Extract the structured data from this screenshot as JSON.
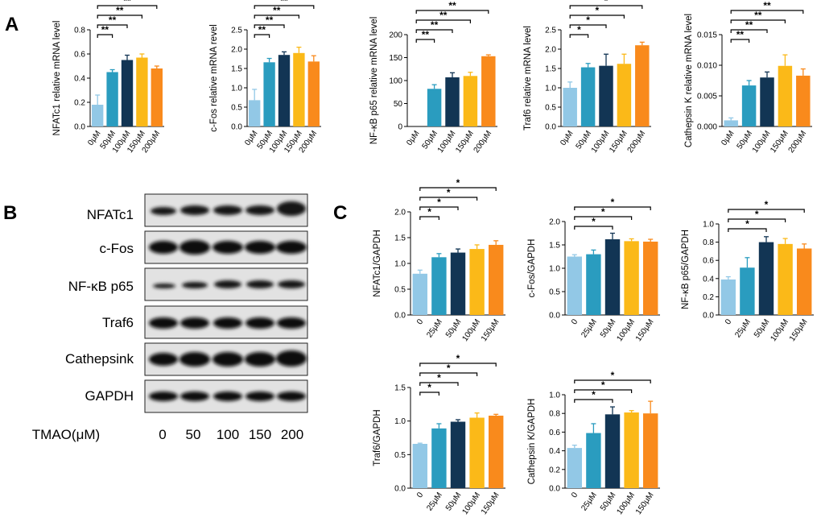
{
  "figure": {
    "panels": {
      "a": "A",
      "b": "B",
      "c": "C"
    }
  },
  "colors": [
    "#92c8e6",
    "#2a9cbf",
    "#123554",
    "#fbb918",
    "#f98a1c"
  ],
  "chart_data": [
    {
      "type": "bar",
      "panel": "A",
      "categories": [
        "0μM",
        "50μM",
        "100μM",
        "150μM",
        "200μM"
      ],
      "values": [
        0.18,
        0.45,
        0.55,
        0.57,
        0.48
      ],
      "errors": [
        0.08,
        0.02,
        0.04,
        0.03,
        0.02
      ],
      "ylabel": "NFATc1 relative mRNA level",
      "ylim": [
        0,
        0.8
      ],
      "yticks": [
        "0.0",
        "0.2",
        "0.4",
        "0.6",
        "0.8"
      ],
      "significance": [
        {
          "from": 0,
          "to": 1,
          "label": "**"
        },
        {
          "from": 0,
          "to": 2,
          "label": "**"
        },
        {
          "from": 0,
          "to": 3,
          "label": "**"
        },
        {
          "from": 0,
          "to": 4,
          "label": "**"
        }
      ]
    },
    {
      "type": "bar",
      "panel": "A",
      "categories": [
        "0μM",
        "50μM",
        "100μM",
        "150μM",
        "200μM"
      ],
      "values": [
        0.68,
        1.66,
        1.85,
        1.9,
        1.68
      ],
      "errors": [
        0.28,
        0.1,
        0.08,
        0.15,
        0.15
      ],
      "ylabel": "c-Fos relative mRNA revel",
      "ylim": [
        0,
        2.5
      ],
      "yticks": [
        "0.0",
        "0.5",
        "1.0",
        "1.5",
        "2.0",
        "2.5"
      ],
      "significance": [
        {
          "from": 0,
          "to": 1,
          "label": "**"
        },
        {
          "from": 0,
          "to": 2,
          "label": "**"
        },
        {
          "from": 0,
          "to": 3,
          "label": "**"
        },
        {
          "from": 0,
          "to": 4,
          "label": "**"
        }
      ]
    },
    {
      "type": "bar",
      "panel": "A",
      "categories": [
        "0μM",
        "50μM",
        "100μM",
        "150μM",
        "200μM"
      ],
      "values": [
        0,
        82,
        107,
        110,
        153
      ],
      "errors": [
        0,
        9,
        10,
        8,
        3
      ],
      "ylabel": "NF-κB p65 relative mRNA level",
      "ylim": [
        0,
        200
      ],
      "yticks": [
        "0",
        "50",
        "100",
        "150",
        "200"
      ],
      "significance": [
        {
          "from": 0,
          "to": 1,
          "label": "**"
        },
        {
          "from": 0,
          "to": 2,
          "label": "**"
        },
        {
          "from": 0,
          "to": 3,
          "label": "**"
        },
        {
          "from": 0,
          "to": 4,
          "label": "**"
        }
      ]
    },
    {
      "type": "bar",
      "panel": "A",
      "categories": [
        "0μM",
        "50μM",
        "100μM",
        "150μM",
        "200μM"
      ],
      "values": [
        1.0,
        1.53,
        1.57,
        1.62,
        2.1
      ],
      "errors": [
        0.15,
        0.1,
        0.3,
        0.25,
        0.08
      ],
      "ylabel": "Traf6 relative mRNA level",
      "ylim": [
        0,
        2.5
      ],
      "yticks": [
        "0.0",
        "0.5",
        "1.0",
        "1.5",
        "2.0",
        "2.5"
      ],
      "significance": [
        {
          "from": 0,
          "to": 1,
          "label": "*"
        },
        {
          "from": 0,
          "to": 2,
          "label": "*"
        },
        {
          "from": 0,
          "to": 3,
          "label": "*"
        },
        {
          "from": 0,
          "to": 4,
          "label": "*"
        }
      ]
    },
    {
      "type": "bar",
      "panel": "A",
      "categories": [
        "0μM",
        "50μM",
        "100μM",
        "150μM",
        "200μM"
      ],
      "values": [
        0.001,
        0.0067,
        0.008,
        0.0099,
        0.0083
      ],
      "errors": [
        0.0004,
        0.0008,
        0.0009,
        0.0018,
        0.0011
      ],
      "ylabel": "Cathepsin K relative mRNA level",
      "ylim": [
        0,
        0.015
      ],
      "yticks": [
        "0.000",
        "0.005",
        "0.010",
        "0.015"
      ],
      "significance": [
        {
          "from": 0,
          "to": 1,
          "label": "**"
        },
        {
          "from": 0,
          "to": 2,
          "label": "**"
        },
        {
          "from": 0,
          "to": 3,
          "label": "**"
        },
        {
          "from": 0,
          "to": 4,
          "label": "**"
        }
      ]
    },
    {
      "type": "bar",
      "panel": "C",
      "categories": [
        "0",
        "25μM",
        "50μM",
        "100μM",
        "150μM"
      ],
      "values": [
        0.8,
        1.12,
        1.21,
        1.28,
        1.36
      ],
      "errors": [
        0.07,
        0.07,
        0.07,
        0.08,
        0.08
      ],
      "ylabel": "NFATc1/GAPDH",
      "ylim": [
        0,
        2.0
      ],
      "yticks": [
        "0.0",
        "0.5",
        "1.0",
        "1.5",
        "2.0"
      ],
      "significance": [
        {
          "from": 0,
          "to": 1,
          "label": "*"
        },
        {
          "from": 0,
          "to": 2,
          "label": "*"
        },
        {
          "from": 0,
          "to": 3,
          "label": "*"
        },
        {
          "from": 0,
          "to": 4,
          "label": "*"
        }
      ]
    },
    {
      "type": "bar",
      "panel": "C",
      "categories": [
        "0",
        "25μM",
        "50μM",
        "100μM",
        "150μM"
      ],
      "values": [
        1.25,
        1.3,
        1.62,
        1.58,
        1.57
      ],
      "errors": [
        0.04,
        0.09,
        0.13,
        0.05,
        0.05
      ],
      "ylabel": "c-Fos/GAPDH",
      "ylim": [
        0,
        2.0
      ],
      "yticks": [
        "0.0",
        "0.5",
        "1.0",
        "1.5",
        "2.0"
      ],
      "significance": [
        {
          "from": 0,
          "to": 2,
          "label": "*"
        },
        {
          "from": 0,
          "to": 3,
          "label": "*"
        },
        {
          "from": 0,
          "to": 4,
          "label": "*"
        }
      ]
    },
    {
      "type": "bar",
      "panel": "C",
      "categories": [
        "0",
        "25μM",
        "50μM",
        "100μM",
        "150μM"
      ],
      "values": [
        0.39,
        0.52,
        0.8,
        0.78,
        0.73
      ],
      "errors": [
        0.03,
        0.11,
        0.06,
        0.06,
        0.05
      ],
      "ylabel": "NF-κB p65/GAPDH",
      "ylim": [
        0,
        1.0
      ],
      "yticks": [
        "0.0",
        "0.2",
        "0.4",
        "0.6",
        "0.8",
        "1.0"
      ],
      "significance": [
        {
          "from": 0,
          "to": 2,
          "label": "*"
        },
        {
          "from": 0,
          "to": 3,
          "label": "*"
        },
        {
          "from": 0,
          "to": 4,
          "label": "*"
        }
      ]
    },
    {
      "type": "bar",
      "panel": "C",
      "categories": [
        "0",
        "25μM",
        "50μM",
        "100μM",
        "150μM"
      ],
      "values": [
        0.66,
        0.89,
        0.99,
        1.05,
        1.08
      ],
      "errors": [
        0.01,
        0.07,
        0.03,
        0.07,
        0.02
      ],
      "ylabel": "Traf6/GAPDH",
      "ylim": [
        0,
        1.5
      ],
      "yticks": [
        "0.0",
        "0.5",
        "1.0",
        "1.5"
      ],
      "significance": [
        {
          "from": 0,
          "to": 1,
          "label": "*"
        },
        {
          "from": 0,
          "to": 2,
          "label": "*"
        },
        {
          "from": 0,
          "to": 3,
          "label": "*"
        },
        {
          "from": 0,
          "to": 4,
          "label": "*"
        }
      ]
    },
    {
      "type": "bar",
      "panel": "C",
      "categories": [
        "0",
        "25μM",
        "50μM",
        "100μM",
        "150μM"
      ],
      "values": [
        0.43,
        0.59,
        0.79,
        0.81,
        0.8
      ],
      "errors": [
        0.03,
        0.1,
        0.08,
        0.02,
        0.13
      ],
      "ylabel": "Cathepsin K/GAPDH",
      "ylim": [
        0,
        1.0
      ],
      "yticks": [
        "0.0",
        "0.2",
        "0.4",
        "0.6",
        "0.8",
        "1.0"
      ],
      "significance": [
        {
          "from": 0,
          "to": 2,
          "label": "*"
        },
        {
          "from": 0,
          "to": 3,
          "label": "*"
        },
        {
          "from": 0,
          "to": 4,
          "label": "*"
        }
      ]
    }
  ],
  "blot": {
    "proteins": [
      "NFATc1",
      "c-Fos",
      "NF-κB p65",
      "Traf6",
      "Cathepsink",
      "GAPDH"
    ],
    "dose_label": "TMAO(μM)",
    "doses": [
      "0",
      "50",
      "100",
      "150",
      "200"
    ]
  }
}
